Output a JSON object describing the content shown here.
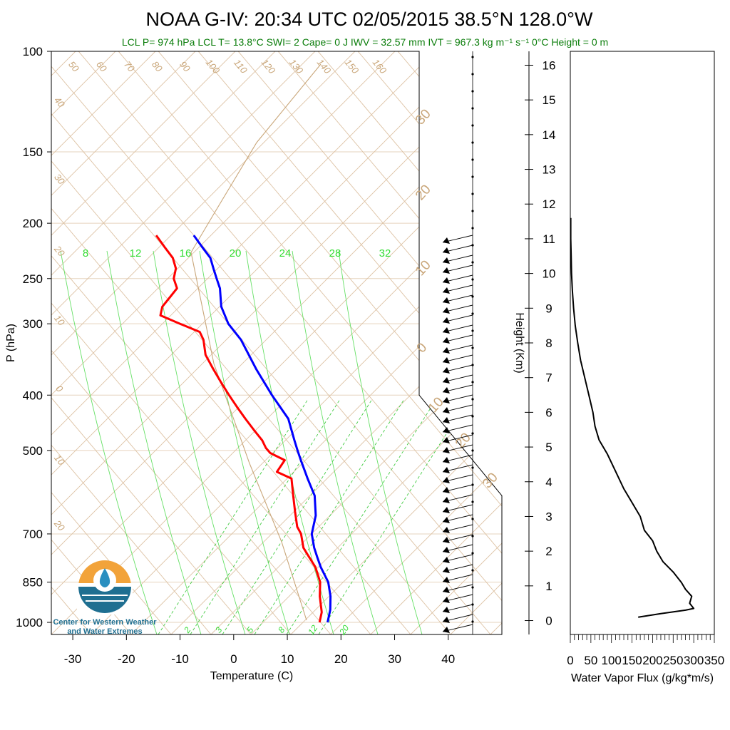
{
  "title": "NOAA G-IV: 20:34 UTC 02/05/2015  38.5°N 128.0°W",
  "subtitle": "LCL P= 974 hPa  LCL T= 13.8°C  SWI= 2  Cape= 0 J  IWV = 32.57 mm  IVT = 967.3 kg m⁻¹ s⁻¹  0°C Height = 0 m",
  "logo": {
    "line1": "Center for Western Weather",
    "line2": "and Water Extremes"
  },
  "colors": {
    "temperature": "#ff0000",
    "dewpoint": "#0000ff",
    "flux": "#000000",
    "moist_adiabat": "#33dd33",
    "dry_adiabat": "#c9a679",
    "subtitle": "#0a7d0a"
  },
  "chart_data": [
    {
      "type": "line",
      "name": "skewt",
      "xlabel": "Temperature (C)",
      "ylabel": "P (hPa)",
      "ylog": true,
      "ylim": [
        1050,
        100
      ],
      "xlim": [
        -34,
        50
      ],
      "grid": true,
      "x_ticks": [
        "-30",
        "-20",
        "-10",
        "0",
        "10",
        "20",
        "30",
        "40"
      ],
      "x_tick_values": [
        -30,
        -20,
        -10,
        0,
        10,
        20,
        30,
        40
      ],
      "y_ticks": [
        "100",
        "150",
        "200",
        "250",
        "300",
        "400",
        "500",
        "700",
        "850",
        "1000"
      ],
      "y_tick_values": [
        100,
        150,
        200,
        250,
        300,
        400,
        500,
        700,
        850,
        1000
      ],
      "moist_labels": [
        "8",
        "12",
        "16",
        "20",
        "24",
        "28",
        "32"
      ],
      "mixing_labels": [
        "2",
        "3",
        "5",
        "8",
        "12",
        "20"
      ],
      "theta_labels": [
        "50",
        "60",
        "70",
        "80",
        "90",
        "100",
        "110",
        "120",
        "130",
        "140",
        "150",
        "160"
      ],
      "left_labels": [
        "40",
        "30",
        "20",
        "10",
        "0",
        "10",
        "20"
      ],
      "right_labels": [
        "30",
        "20",
        "10",
        "0",
        "10",
        "20",
        "30"
      ],
      "series": [
        {
          "name": "temperature",
          "points": [
            [
              1000,
              16
            ],
            [
              960,
              16
            ],
            [
              900,
              15
            ],
            [
              850,
              14.5
            ],
            [
              800,
              13
            ],
            [
              760,
              11
            ],
            [
              740,
              10
            ],
            [
              700,
              9
            ],
            [
              680,
              8
            ],
            [
              640,
              7
            ],
            [
              600,
              6
            ],
            [
              560,
              5
            ],
            [
              545,
              2
            ],
            [
              520,
              3
            ],
            [
              505,
              0
            ],
            [
              495,
              -1
            ],
            [
              480,
              -2
            ],
            [
              460,
              -4
            ],
            [
              440,
              -6
            ],
            [
              420,
              -8
            ],
            [
              400,
              -10
            ],
            [
              380,
              -12
            ],
            [
              360,
              -14
            ],
            [
              340,
              -16
            ],
            [
              320,
              -17
            ],
            [
              310,
              -18
            ],
            [
              300,
              -22
            ],
            [
              290,
              -26
            ],
            [
              280,
              -26
            ],
            [
              270,
              -25
            ],
            [
              260,
              -24
            ],
            [
              250,
              -25
            ],
            [
              240,
              -25
            ],
            [
              230,
              -26
            ],
            [
              220,
              -28
            ],
            [
              210,
              -30
            ]
          ]
        },
        {
          "name": "dewpoint",
          "points": [
            [
              1000,
              17.5
            ],
            [
              950,
              17.5
            ],
            [
              900,
              17
            ],
            [
              850,
              16
            ],
            [
              800,
              14
            ],
            [
              770,
              13
            ],
            [
              740,
              12
            ],
            [
              700,
              11
            ],
            [
              650,
              11
            ],
            [
              600,
              10
            ],
            [
              560,
              8
            ],
            [
              520,
              6
            ],
            [
              500,
              5
            ],
            [
              480,
              4
            ],
            [
              440,
              2
            ],
            [
              400,
              -2
            ],
            [
              360,
              -6
            ],
            [
              320,
              -10
            ],
            [
              300,
              -13
            ],
            [
              280,
              -15
            ],
            [
              260,
              -16
            ],
            [
              250,
              -17
            ],
            [
              240,
              -18
            ],
            [
              230,
              -19
            ],
            [
              220,
              -21
            ],
            [
              210,
              -23
            ]
          ]
        }
      ]
    },
    {
      "type": "line",
      "name": "water_vapor_flux",
      "xlabel": "Water Vapor Flux (g/kg*m/s)",
      "ylabel": "Height (Km)",
      "xlim": [
        0,
        350
      ],
      "ylim": [
        -0.4,
        16.4
      ],
      "x_ticks": [
        "0",
        "50",
        "100",
        "150",
        "200",
        "250",
        "300",
        "350"
      ],
      "y_ticks": [
        "0",
        "1",
        "2",
        "3",
        "4",
        "5",
        "6",
        "7",
        "8",
        "9",
        "10",
        "11",
        "12",
        "13",
        "14",
        "15",
        "16"
      ],
      "points": [
        [
          165,
          0.1
        ],
        [
          220,
          0.2
        ],
        [
          280,
          0.3
        ],
        [
          300,
          0.35
        ],
        [
          290,
          0.5
        ],
        [
          295,
          0.7
        ],
        [
          280,
          0.9
        ],
        [
          270,
          1.1
        ],
        [
          250,
          1.4
        ],
        [
          225,
          1.7
        ],
        [
          210,
          2.0
        ],
        [
          200,
          2.3
        ],
        [
          180,
          2.6
        ],
        [
          170,
          3.0
        ],
        [
          150,
          3.4
        ],
        [
          130,
          3.8
        ],
        [
          110,
          4.3
        ],
        [
          90,
          4.8
        ],
        [
          70,
          5.2
        ],
        [
          60,
          5.6
        ],
        [
          55,
          6.0
        ],
        [
          45,
          6.5
        ],
        [
          35,
          7.0
        ],
        [
          25,
          7.5
        ],
        [
          18,
          8.0
        ],
        [
          12,
          8.5
        ],
        [
          8,
          9.0
        ],
        [
          5,
          9.5
        ],
        [
          3,
          10.0
        ],
        [
          2,
          10.5
        ],
        [
          1,
          11.0
        ],
        [
          1,
          11.6
        ]
      ]
    }
  ]
}
